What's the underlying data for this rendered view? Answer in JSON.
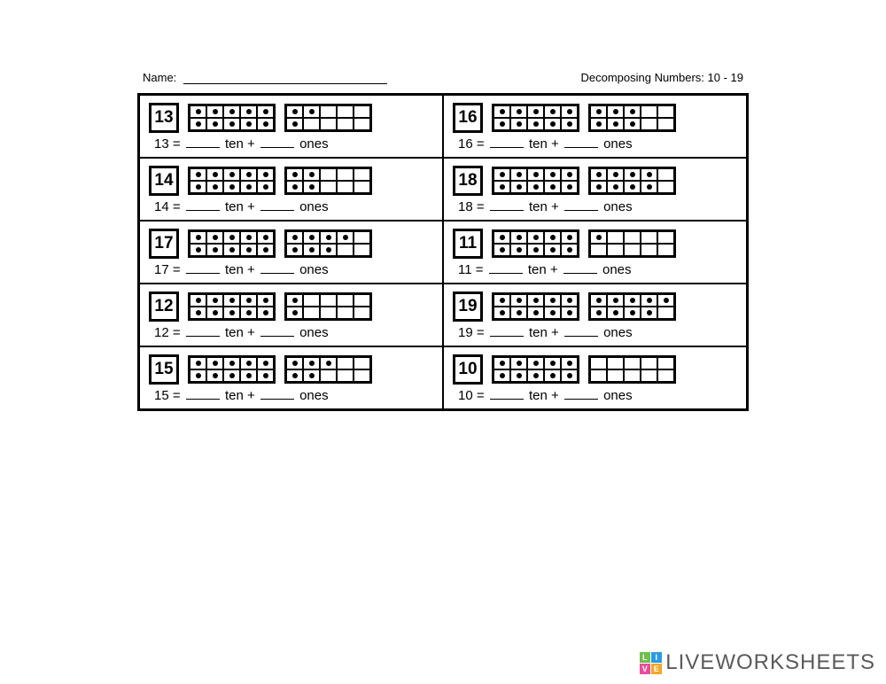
{
  "header": {
    "name_label": "Name:",
    "title": "Decomposing Numbers: 10 - 19"
  },
  "problems": [
    {
      "number": "13",
      "frame1": 10,
      "frame2": 3
    },
    {
      "number": "16",
      "frame1": 10,
      "frame2": 6
    },
    {
      "number": "14",
      "frame1": 10,
      "frame2": 4
    },
    {
      "number": "18",
      "frame1": 10,
      "frame2": 8
    },
    {
      "number": "17",
      "frame1": 10,
      "frame2": 7
    },
    {
      "number": "11",
      "frame1": 10,
      "frame2": 1
    },
    {
      "number": "12",
      "frame1": 10,
      "frame2": 2
    },
    {
      "number": "19",
      "frame1": 10,
      "frame2": 9
    },
    {
      "number": "15",
      "frame1": 10,
      "frame2": 5
    },
    {
      "number": "10",
      "frame1": 10,
      "frame2": 0
    }
  ],
  "equation": {
    "equals": " = ",
    "ten": " ten + ",
    "ones": " ones"
  },
  "watermark": {
    "text": "LIVEWORKSHEETS",
    "logo": [
      {
        "bg": "#6fbf4b",
        "t": "L"
      },
      {
        "bg": "#2b9be3",
        "t": "I"
      },
      {
        "bg": "#e94d9b",
        "t": "V"
      },
      {
        "bg": "#f5a623",
        "t": "E"
      }
    ]
  },
  "colors": {
    "border": "#000000",
    "bg": "#ffffff"
  }
}
